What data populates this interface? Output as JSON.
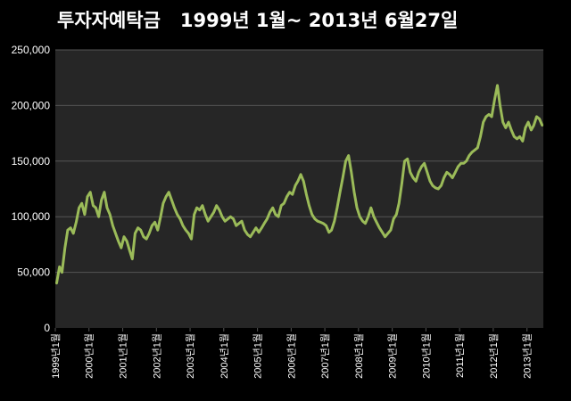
{
  "chart_data": {
    "type": "line",
    "title": "투자자예탁금   1999년 1월~ 2013년 6월27일",
    "xlabel": "",
    "ylabel": "",
    "ylim": [
      0,
      250000
    ],
    "yticks": [
      "0",
      "50,000",
      "100,000",
      "150,000",
      "200,000",
      "250,000"
    ],
    "xlim": [
      "1999-01-01",
      "2013-06-27"
    ],
    "xticks": [
      "1999년1월",
      "2000년1월",
      "2001년1월",
      "2002년1월",
      "2003년1월",
      "2004년1월",
      "2005년1월",
      "2006년1월",
      "2007년1월",
      "2008년1월",
      "2009년1월",
      "2010년1월",
      "2011년1월",
      "2012년1월",
      "2013년1월"
    ],
    "grid": true,
    "colors": {
      "background": "#000000",
      "plot_area": "#262626",
      "grid": "#555555",
      "line": "#9bbb59",
      "text": "#ffffff"
    },
    "series": [
      {
        "x": [
          "1999-01",
          "1999-02",
          "1999-03",
          "1999-04",
          "1999-05",
          "1999-06",
          "1999-07",
          "1999-08",
          "1999-09",
          "1999-10",
          "1999-11",
          "1999-12",
          "2000-01",
          "2000-02",
          "2000-03",
          "2000-04",
          "2000-05",
          "2000-06",
          "2000-07",
          "2000-08",
          "2000-09",
          "2000-10",
          "2000-11",
          "2000-12",
          "2001-01",
          "2001-02",
          "2001-03",
          "2001-04",
          "2001-05",
          "2001-06",
          "2001-07",
          "2001-08",
          "2001-09",
          "2001-10",
          "2001-11",
          "2001-12",
          "2002-01",
          "2002-02",
          "2002-03",
          "2002-04",
          "2002-05",
          "2002-06",
          "2002-07",
          "2002-08",
          "2002-09",
          "2002-10",
          "2002-11",
          "2002-12",
          "2003-01",
          "2003-02",
          "2003-03",
          "2003-04",
          "2003-05",
          "2003-06",
          "2003-07",
          "2003-08",
          "2003-09",
          "2003-10",
          "2003-11",
          "2003-12",
          "2004-01",
          "2004-02",
          "2004-03",
          "2004-04",
          "2004-05",
          "2004-06",
          "2004-07",
          "2004-08",
          "2004-09",
          "2004-10",
          "2004-11",
          "2004-12",
          "2005-01",
          "2005-02",
          "2005-03",
          "2005-04",
          "2005-05",
          "2005-06",
          "2005-07",
          "2005-08",
          "2005-09",
          "2005-10",
          "2005-11",
          "2005-12",
          "2006-01",
          "2006-02",
          "2006-03",
          "2006-04",
          "2006-05",
          "2006-06",
          "2006-07",
          "2006-08",
          "2006-09",
          "2006-10",
          "2006-11",
          "2006-12",
          "2007-01",
          "2007-02",
          "2007-03",
          "2007-04",
          "2007-05",
          "2007-06",
          "2007-07",
          "2007-08",
          "2007-09",
          "2007-10",
          "2007-11",
          "2007-12",
          "2008-01",
          "2008-02",
          "2008-03",
          "2008-04",
          "2008-05",
          "2008-06",
          "2008-07",
          "2008-08",
          "2008-09",
          "2008-10",
          "2008-11",
          "2008-12",
          "2009-01",
          "2009-02",
          "2009-03",
          "2009-04",
          "2009-05",
          "2009-06",
          "2009-07",
          "2009-08",
          "2009-09",
          "2009-10",
          "2009-11",
          "2009-12",
          "2010-01",
          "2010-02",
          "2010-03",
          "2010-04",
          "2010-05",
          "2010-06",
          "2010-07",
          "2010-08",
          "2010-09",
          "2010-10",
          "2010-11",
          "2010-12",
          "2011-01",
          "2011-02",
          "2011-03",
          "2011-04",
          "2011-05",
          "2011-06",
          "2011-07",
          "2011-08",
          "2011-09",
          "2011-10",
          "2011-11",
          "2011-12",
          "2012-01",
          "2012-02",
          "2012-03",
          "2012-04",
          "2012-05",
          "2012-06",
          "2012-07",
          "2012-08",
          "2012-09",
          "2012-10",
          "2012-11",
          "2012-12",
          "2013-01",
          "2013-02",
          "2013-03",
          "2013-04",
          "2013-05",
          "2013-06"
        ],
        "values": [
          40000,
          55000,
          50000,
          72000,
          88000,
          90000,
          85000,
          95000,
          108000,
          112000,
          102000,
          118000,
          122000,
          110000,
          108000,
          100000,
          115000,
          122000,
          108000,
          102000,
          92000,
          85000,
          78000,
          72000,
          82000,
          78000,
          70000,
          62000,
          85000,
          90000,
          88000,
          82000,
          80000,
          85000,
          92000,
          95000,
          88000,
          100000,
          112000,
          118000,
          122000,
          115000,
          108000,
          102000,
          98000,
          92000,
          88000,
          85000,
          80000,
          102000,
          108000,
          106000,
          110000,
          102000,
          96000,
          100000,
          104000,
          110000,
          106000,
          100000,
          96000,
          98000,
          100000,
          98000,
          92000,
          94000,
          96000,
          88000,
          84000,
          82000,
          86000,
          90000,
          86000,
          90000,
          94000,
          98000,
          104000,
          108000,
          102000,
          100000,
          110000,
          112000,
          118000,
          122000,
          120000,
          128000,
          132000,
          138000,
          132000,
          120000,
          110000,
          102000,
          98000,
          96000,
          95000,
          94000,
          92000,
          86000,
          88000,
          96000,
          108000,
          122000,
          135000,
          150000,
          155000,
          140000,
          122000,
          108000,
          100000,
          96000,
          94000,
          100000,
          108000,
          100000,
          95000,
          90000,
          86000,
          82000,
          85000,
          88000,
          98000,
          102000,
          112000,
          130000,
          150000,
          152000,
          140000,
          135000,
          132000,
          140000,
          145000,
          148000,
          140000,
          132000,
          128000,
          126000,
          125000,
          128000,
          135000,
          140000,
          138000,
          135000,
          140000,
          145000,
          148000,
          148000,
          150000,
          155000,
          158000,
          160000,
          162000,
          172000,
          185000,
          190000,
          192000,
          190000,
          205000,
          218000,
          200000,
          185000,
          180000,
          185000,
          178000,
          172000,
          170000,
          172000,
          168000,
          180000,
          185000,
          178000,
          182000,
          190000,
          188000,
          182000
        ]
      }
    ]
  }
}
